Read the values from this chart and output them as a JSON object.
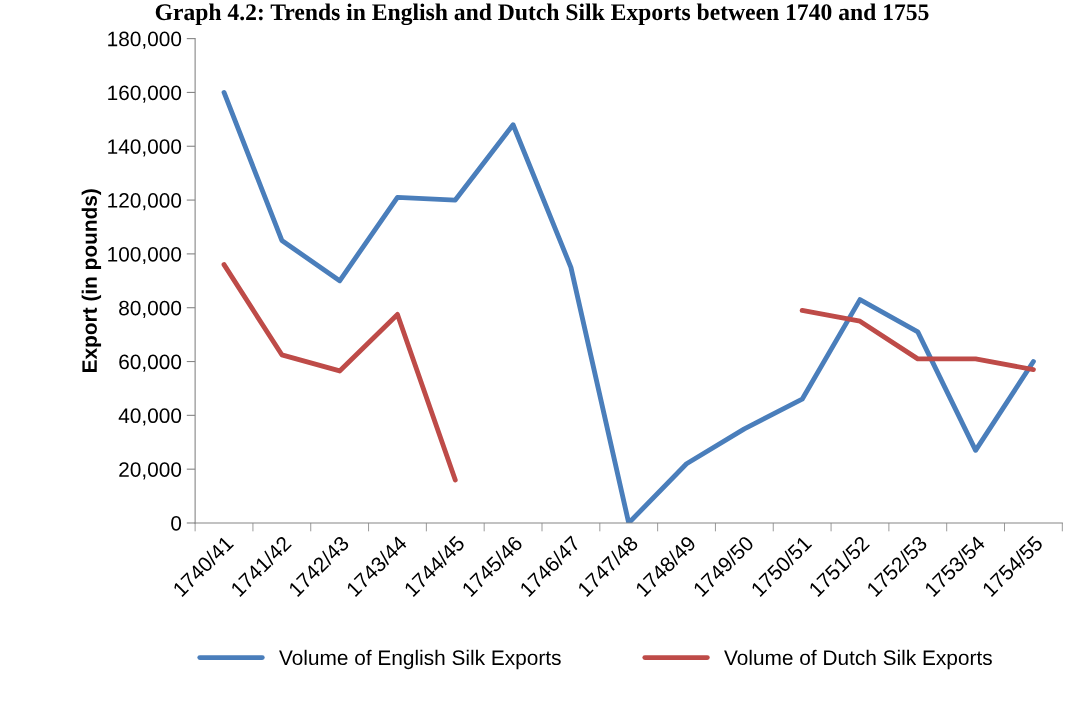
{
  "chart_data": {
    "type": "line",
    "title": "Graph 4.2: Trends in English and Dutch Silk Exports between 1740 and 1755",
    "ylabel": "Export (in pounds)",
    "categories": [
      "1740/41",
      "1741/42",
      "1742/43",
      "1743/44",
      "1744/45",
      "1745/46",
      "1746/47",
      "1747/48",
      "1748/49",
      "1749/50",
      "1750/51",
      "1751/52",
      "1752/53",
      "1753/54",
      "1754/55"
    ],
    "series": [
      {
        "name": "Volume of English Silk Exports",
        "color": "#4a7ebb",
        "values": [
          160000,
          105000,
          90000,
          121000,
          120000,
          148000,
          95000,
          0,
          22000,
          35000,
          46000,
          83000,
          71000,
          27000,
          60000
        ]
      },
      {
        "name": "Volume of Dutch Silk Exports",
        "color": "#be4b48",
        "values": [
          96000,
          62500,
          56500,
          77500,
          16000,
          null,
          null,
          null,
          null,
          null,
          79000,
          75000,
          61000,
          61000,
          57000
        ]
      }
    ],
    "ylim": [
      0,
      180000
    ],
    "yticks": [
      {
        "value": 0,
        "label": "0"
      },
      {
        "value": 20000,
        "label": "20,000"
      },
      {
        "value": 40000,
        "label": "40,000"
      },
      {
        "value": 60000,
        "label": "60,000"
      },
      {
        "value": 80000,
        "label": "80,000"
      },
      {
        "value": 100000,
        "label": "100,000"
      },
      {
        "value": 120000,
        "label": "120,000"
      },
      {
        "value": 140000,
        "label": "140,000"
      },
      {
        "value": 160000,
        "label": "160,000"
      },
      {
        "value": 180000,
        "label": "180,000"
      }
    ],
    "grid": false,
    "legend": "bottom",
    "marker": "none",
    "line_style": "solid"
  }
}
